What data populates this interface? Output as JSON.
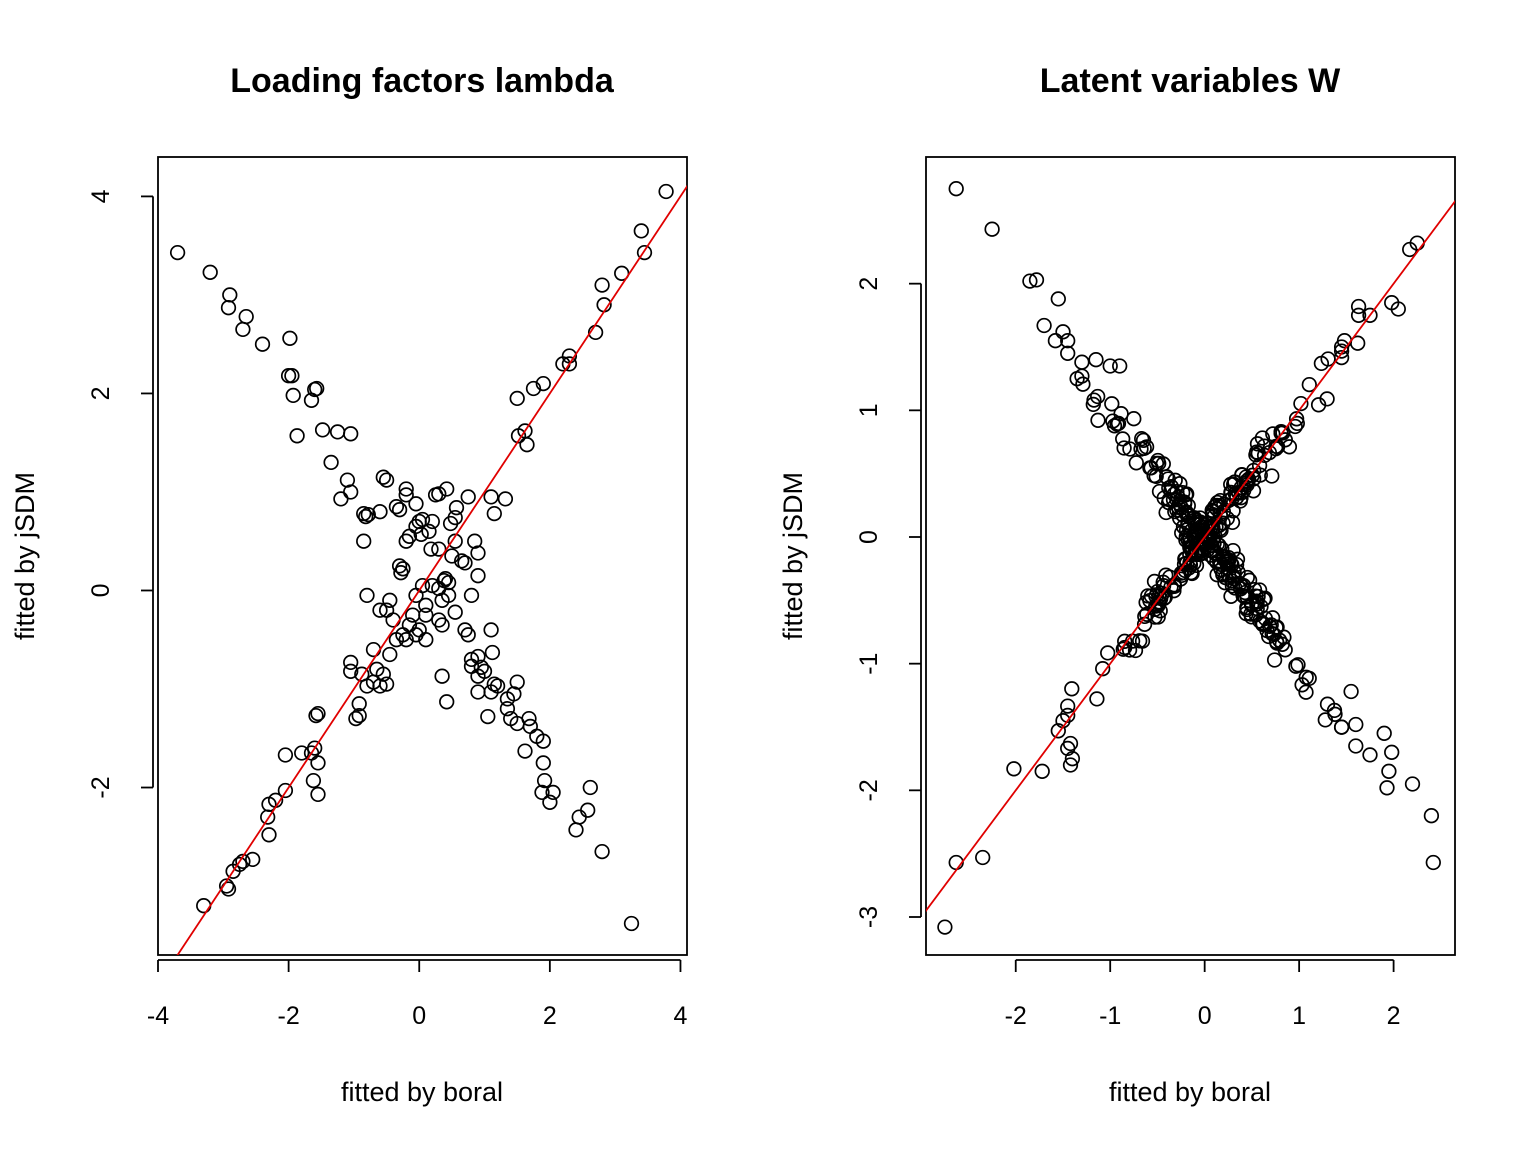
{
  "chart_data": [
    {
      "type": "scatter",
      "title": "Loading factors lambda",
      "xlabel": "fitted by boral",
      "ylabel": "fitted by jSDM",
      "xlim": [
        -4.0,
        4.1
      ],
      "ylim": [
        -3.7,
        4.4
      ],
      "xticks": [
        "-4",
        "-2",
        "0",
        "2",
        "4"
      ],
      "yticks": [
        "-2",
        "0",
        "2",
        "4"
      ],
      "reference_line": {
        "slope": 1,
        "intercept": 0,
        "color": "#e00000"
      },
      "point_color": "#000000",
      "points": [
        [
          -3.7,
          3.43
        ],
        [
          -3.2,
          3.23
        ],
        [
          -2.9,
          3.0
        ],
        [
          -2.92,
          2.87
        ],
        [
          -2.65,
          2.78
        ],
        [
          -2.7,
          2.65
        ],
        [
          -2.4,
          2.5
        ],
        [
          -2.0,
          2.18
        ],
        [
          -1.95,
          2.18
        ],
        [
          -1.98,
          2.56
        ],
        [
          -1.93,
          1.98
        ],
        [
          -1.6,
          2.04
        ],
        [
          -1.57,
          2.05
        ],
        [
          -1.65,
          1.93
        ],
        [
          -1.87,
          1.57
        ],
        [
          -1.48,
          1.63
        ],
        [
          -1.25,
          1.61
        ],
        [
          -1.05,
          1.59
        ],
        [
          -1.35,
          1.3
        ],
        [
          -1.1,
          1.12
        ],
        [
          -1.05,
          1.0
        ],
        [
          -1.2,
          0.93
        ],
        [
          -0.55,
          1.15
        ],
        [
          -0.5,
          1.12
        ],
        [
          -0.2,
          1.03
        ],
        [
          -0.2,
          0.97
        ],
        [
          0.25,
          0.97
        ],
        [
          0.3,
          0.98
        ],
        [
          0.42,
          1.03
        ],
        [
          0.57,
          0.84
        ],
        [
          -0.85,
          0.78
        ],
        [
          -0.82,
          0.75
        ],
        [
          -0.78,
          0.77
        ],
        [
          -0.6,
          0.8
        ],
        [
          -0.35,
          0.85
        ],
        [
          -0.3,
          0.82
        ],
        [
          -0.05,
          0.88
        ],
        [
          0.0,
          0.7
        ],
        [
          0.05,
          0.72
        ],
        [
          -0.05,
          0.65
        ],
        [
          0.03,
          0.57
        ],
        [
          0.15,
          0.6
        ],
        [
          0.2,
          0.7
        ],
        [
          0.48,
          0.68
        ],
        [
          0.55,
          0.74
        ],
        [
          0.3,
          0.42
        ],
        [
          0.18,
          0.42
        ],
        [
          -0.2,
          0.5
        ],
        [
          -0.15,
          0.55
        ],
        [
          -0.85,
          0.5
        ],
        [
          -0.3,
          0.25
        ],
        [
          -0.25,
          0.22
        ],
        [
          -0.28,
          0.18
        ],
        [
          0.5,
          0.35
        ],
        [
          0.55,
          0.5
        ],
        [
          0.65,
          0.3
        ],
        [
          0.7,
          0.28
        ],
        [
          0.85,
          0.5
        ],
        [
          0.9,
          0.38
        ],
        [
          0.9,
          0.15
        ],
        [
          0.75,
          0.95
        ],
        [
          1.1,
          0.95
        ],
        [
          1.15,
          0.78
        ],
        [
          1.32,
          0.93
        ],
        [
          -0.8,
          -0.05
        ],
        [
          -0.45,
          -0.1
        ],
        [
          -0.6,
          -0.2
        ],
        [
          -0.5,
          -0.2
        ],
        [
          -0.4,
          -0.3
        ],
        [
          -0.25,
          -0.45
        ],
        [
          -0.15,
          -0.35
        ],
        [
          -0.1,
          -0.25
        ],
        [
          -0.05,
          -0.05
        ],
        [
          0.05,
          0.05
        ],
        [
          0.1,
          -0.15
        ],
        [
          0.1,
          -0.25
        ],
        [
          0.2,
          0.05
        ],
        [
          0.3,
          0.02
        ],
        [
          0.38,
          0.1
        ],
        [
          0.45,
          0.08
        ],
        [
          0.4,
          0.12
        ],
        [
          0.35,
          -0.1
        ],
        [
          0.45,
          -0.05
        ],
        [
          0.55,
          -0.22
        ],
        [
          0.8,
          -0.05
        ],
        [
          0.1,
          -0.5
        ],
        [
          0.3,
          -0.3
        ],
        [
          0.35,
          -0.35
        ],
        [
          -0.05,
          -0.45
        ],
        [
          -0.2,
          -0.5
        ],
        [
          -0.35,
          -0.5
        ],
        [
          0.0,
          -0.4
        ],
        [
          0.7,
          -0.4
        ],
        [
          0.75,
          -0.45
        ],
        [
          -0.7,
          -0.6
        ],
        [
          -0.45,
          -0.65
        ],
        [
          -0.65,
          -0.8
        ],
        [
          -0.55,
          -0.85
        ],
        [
          -0.7,
          -0.93
        ],
        [
          -0.8,
          -0.97
        ],
        [
          -0.6,
          -0.97
        ],
        [
          -0.5,
          -0.95
        ],
        [
          -1.05,
          -0.73
        ],
        [
          -1.05,
          -0.82
        ],
        [
          -0.88,
          -0.85
        ],
        [
          -0.92,
          -1.15
        ],
        [
          -0.92,
          -1.27
        ],
        [
          -0.97,
          -1.3
        ],
        [
          0.35,
          -0.87
        ],
        [
          0.42,
          -1.13
        ],
        [
          0.8,
          -0.7
        ],
        [
          0.8,
          -0.77
        ],
        [
          0.9,
          -0.67
        ],
        [
          0.95,
          -0.78
        ],
        [
          0.9,
          -0.87
        ],
        [
          1.1,
          -0.4
        ],
        [
          1.12,
          -0.63
        ],
        [
          1.0,
          -0.82
        ],
        [
          0.9,
          -1.03
        ],
        [
          1.15,
          -0.95
        ],
        [
          1.2,
          -0.97
        ],
        [
          1.1,
          -1.03
        ],
        [
          1.05,
          -1.28
        ],
        [
          1.35,
          -1.1
        ],
        [
          1.45,
          -1.05
        ],
        [
          1.5,
          -0.93
        ],
        [
          1.35,
          -1.2
        ],
        [
          1.4,
          -1.3
        ],
        [
          1.5,
          -1.35
        ],
        [
          1.68,
          -1.3
        ],
        [
          1.7,
          -1.38
        ],
        [
          1.8,
          -1.48
        ],
        [
          1.9,
          -1.53
        ],
        [
          1.62,
          -1.63
        ],
        [
          1.9,
          -1.75
        ],
        [
          1.92,
          -1.93
        ],
        [
          1.88,
          -2.05
        ],
        [
          2.05,
          -2.05
        ],
        [
          2.0,
          -2.15
        ],
        [
          2.62,
          -2.0
        ],
        [
          2.58,
          -2.23
        ],
        [
          2.45,
          -2.3
        ],
        [
          2.4,
          -2.43
        ],
        [
          2.8,
          -2.65
        ],
        [
          3.25,
          -3.38
        ],
        [
          -1.55,
          -1.25
        ],
        [
          -1.58,
          -1.27
        ],
        [
          -1.6,
          -1.6
        ],
        [
          -1.65,
          -1.65
        ],
        [
          -1.55,
          -1.75
        ],
        [
          -1.62,
          -1.93
        ],
        [
          -1.55,
          -2.07
        ],
        [
          -1.8,
          -1.65
        ],
        [
          -2.05,
          -1.67
        ],
        [
          -2.05,
          -2.03
        ],
        [
          -2.2,
          -2.13
        ],
        [
          -2.3,
          -2.17
        ],
        [
          -2.32,
          -2.3
        ],
        [
          -2.3,
          -2.48
        ],
        [
          -2.55,
          -2.73
        ],
        [
          -2.7,
          -2.75
        ],
        [
          -2.75,
          -2.78
        ],
        [
          -2.85,
          -2.85
        ],
        [
          -2.95,
          -3.0
        ],
        [
          -2.92,
          -3.03
        ],
        [
          -3.3,
          -3.2
        ],
        [
          1.5,
          1.95
        ],
        [
          1.52,
          1.57
        ],
        [
          1.62,
          1.62
        ],
        [
          1.65,
          1.48
        ],
        [
          1.75,
          2.05
        ],
        [
          1.9,
          2.1
        ],
        [
          2.2,
          2.3
        ],
        [
          2.3,
          2.38
        ],
        [
          2.3,
          2.3
        ],
        [
          2.7,
          2.62
        ],
        [
          2.8,
          3.1
        ],
        [
          2.83,
          2.9
        ],
        [
          3.1,
          3.22
        ],
        [
          3.4,
          3.65
        ],
        [
          3.45,
          3.43
        ],
        [
          3.78,
          4.05
        ]
      ]
    },
    {
      "type": "scatter",
      "title": "Latent variables W",
      "xlabel": "fitted by boral",
      "ylabel": "fitted by jSDM",
      "xlim": [
        -2.95,
        2.65
      ],
      "ylim": [
        -3.3,
        3.0
      ],
      "xticks": [
        "-2",
        "-1",
        "0",
        "1",
        "2"
      ],
      "yticks": [
        "-3",
        "-2",
        "-1",
        "0",
        "1",
        "2"
      ],
      "reference_line": {
        "slope": 1,
        "intercept": 0,
        "color": "#e00000"
      },
      "point_color": "#000000",
      "outliers": [
        [
          -2.63,
          2.75
        ],
        [
          -2.25,
          2.43
        ],
        [
          -1.85,
          2.02
        ],
        [
          -1.78,
          2.03
        ],
        [
          -1.55,
          1.88
        ],
        [
          -1.7,
          1.67
        ],
        [
          -1.5,
          1.62
        ],
        [
          -1.45,
          1.55
        ],
        [
          -1.58,
          1.55
        ],
        [
          -1.45,
          1.45
        ],
        [
          -1.3,
          1.38
        ],
        [
          -1.15,
          1.4
        ],
        [
          -1.0,
          1.35
        ],
        [
          -0.9,
          1.35
        ],
        [
          -1.35,
          1.25
        ],
        [
          -1.3,
          1.27
        ],
        [
          2.25,
          2.32
        ],
        [
          2.17,
          2.27
        ],
        [
          1.98,
          1.85
        ],
        [
          2.05,
          1.8
        ],
        [
          1.63,
          1.82
        ],
        [
          1.63,
          1.75
        ],
        [
          1.75,
          1.75
        ],
        [
          1.62,
          1.53
        ],
        [
          1.48,
          1.55
        ],
        [
          1.45,
          1.5
        ],
        [
          -2.63,
          -2.57
        ],
        [
          -2.75,
          -3.08
        ],
        [
          -2.35,
          -2.53
        ],
        [
          -2.02,
          -1.83
        ],
        [
          -1.72,
          -1.85
        ],
        [
          -1.5,
          -1.45
        ],
        [
          -1.55,
          -1.53
        ],
        [
          -1.42,
          -1.63
        ],
        [
          -1.42,
          -1.8
        ],
        [
          -1.4,
          -1.75
        ],
        [
          2.42,
          -2.57
        ],
        [
          2.4,
          -2.2
        ],
        [
          2.2,
          -1.95
        ],
        [
          1.98,
          -1.7
        ],
        [
          1.95,
          -1.85
        ],
        [
          1.93,
          -1.98
        ],
        [
          1.9,
          -1.55
        ],
        [
          1.75,
          -1.72
        ],
        [
          1.6,
          -1.65
        ],
        [
          1.6,
          -1.48
        ],
        [
          1.55,
          -1.22
        ],
        [
          1.38,
          -1.4
        ],
        [
          1.3,
          -1.32
        ]
      ],
      "cloud": {
        "count": 380,
        "note": "dense X-shaped cluster of points around the origin, following y = x and y = -x"
      }
    }
  ]
}
